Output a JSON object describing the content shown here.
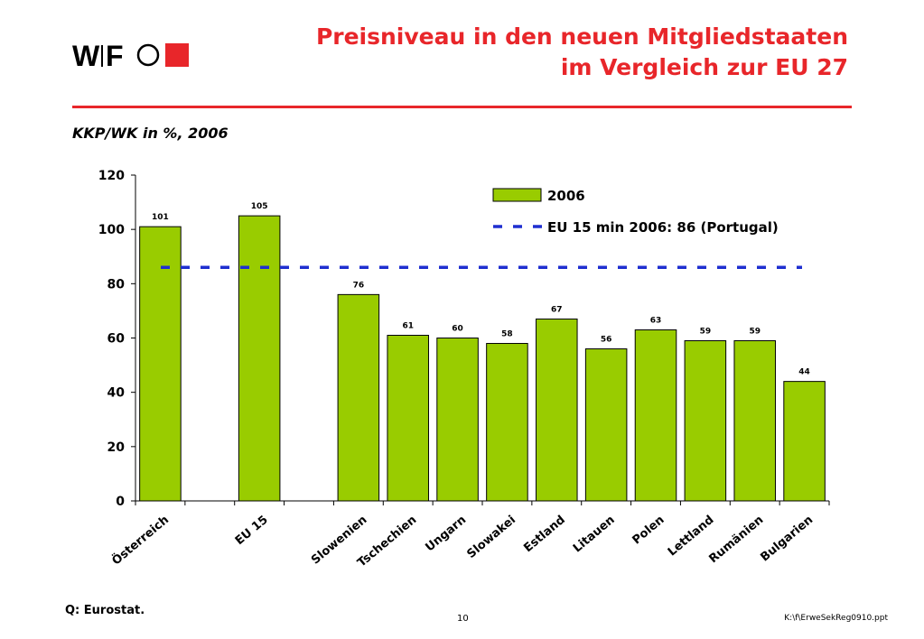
{
  "header": {
    "logo": {
      "text": "WIFO",
      "accent_color": "#e8262a"
    },
    "title_line1": "Preisniveau in den neuen Mitgliedstaaten",
    "title_line2": "im Vergleich zur EU 27",
    "subtitle": "KKP/WK in %, 2006"
  },
  "footer": {
    "source": "Q: Eurostat.",
    "page_number": "10",
    "file_path": "K:\\f\\ErweSekReg0910.ppt"
  },
  "colors": {
    "accent": "#e8262a",
    "bar": "#99cc00",
    "reference_line": "#1f2fd0"
  },
  "chart_data": {
    "type": "bar",
    "categories": [
      "Österreich",
      "EU 15",
      "Slowenien",
      "Tschechien",
      "Ungarn",
      "Slowakei",
      "Estland",
      "Litauen",
      "Polen",
      "Lettland",
      "Rumänien",
      "Bulgarien"
    ],
    "series": [
      {
        "name": "2006",
        "values": [
          101,
          105,
          76,
          61,
          60,
          58,
          67,
          56,
          63,
          59,
          59,
          44
        ]
      }
    ],
    "data_labels": [
      "101",
      "105",
      "76",
      "61",
      "60",
      "58",
      "67",
      "56",
      "63",
      "59",
      "59",
      "44"
    ],
    "reference_line": {
      "name": "EU 15 min 2006: 86 (Portugal)",
      "value": 86,
      "style": "dashed"
    },
    "ylim": [
      0,
      120
    ],
    "yticks": [
      0,
      20,
      40,
      60,
      80,
      100,
      120
    ],
    "legend_position": "top-right",
    "grid": false
  }
}
